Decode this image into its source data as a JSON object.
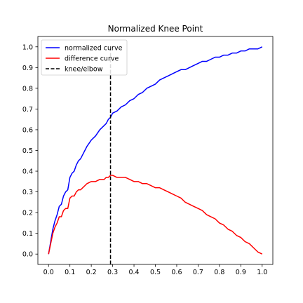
{
  "chart_data": {
    "type": "line",
    "title": "Normalized Knee Point",
    "xlabel": "",
    "ylabel": "",
    "xlim": [
      -0.05,
      1.05
    ],
    "ylim": [
      -0.05,
      1.05
    ],
    "xticks": [
      0.0,
      0.1,
      0.2,
      0.3,
      0.4,
      0.5,
      0.6,
      0.7,
      0.8,
      0.9,
      1.0
    ],
    "xtick_labels": [
      "0.0",
      "0.1",
      "0.2",
      "0.3",
      "0.4",
      "0.5",
      "0.6",
      "0.7",
      "0.8",
      "0.9",
      "1.0"
    ],
    "yticks": [
      0.0,
      0.1,
      0.2,
      0.3,
      0.4,
      0.5,
      0.6,
      0.7,
      0.8,
      0.9,
      1.0
    ],
    "ytick_labels": [
      "0.0",
      "0.1",
      "0.2",
      "0.3",
      "0.4",
      "0.5",
      "0.6",
      "0.7",
      "0.8",
      "0.9",
      "1.0"
    ],
    "grid": false,
    "legend_position": "top-left",
    "series": [
      {
        "name": "normalized curve",
        "color": "#0000ff",
        "x": [
          0.0,
          0.01,
          0.02,
          0.03,
          0.04,
          0.05,
          0.06,
          0.07,
          0.08,
          0.09,
          0.1,
          0.11,
          0.12,
          0.13,
          0.14,
          0.15,
          0.16,
          0.17,
          0.18,
          0.2,
          0.22,
          0.24,
          0.26,
          0.27,
          0.28,
          0.29,
          0.3,
          0.32,
          0.34,
          0.36,
          0.38,
          0.4,
          0.42,
          0.44,
          0.46,
          0.48,
          0.5,
          0.52,
          0.54,
          0.56,
          0.58,
          0.6,
          0.62,
          0.64,
          0.66,
          0.68,
          0.7,
          0.72,
          0.74,
          0.76,
          0.78,
          0.8,
          0.82,
          0.84,
          0.86,
          0.88,
          0.9,
          0.92,
          0.94,
          0.96,
          0.98,
          1.0
        ],
        "y": [
          0.0,
          0.06,
          0.12,
          0.16,
          0.19,
          0.23,
          0.24,
          0.28,
          0.3,
          0.31,
          0.37,
          0.39,
          0.4,
          0.43,
          0.45,
          0.46,
          0.48,
          0.5,
          0.52,
          0.55,
          0.57,
          0.6,
          0.62,
          0.63,
          0.65,
          0.66,
          0.68,
          0.69,
          0.71,
          0.72,
          0.74,
          0.75,
          0.77,
          0.78,
          0.8,
          0.81,
          0.82,
          0.84,
          0.85,
          0.86,
          0.87,
          0.88,
          0.89,
          0.89,
          0.9,
          0.91,
          0.92,
          0.93,
          0.93,
          0.94,
          0.95,
          0.95,
          0.96,
          0.96,
          0.97,
          0.97,
          0.98,
          0.98,
          0.99,
          0.99,
          0.99,
          1.0
        ]
      },
      {
        "name": "difference curve",
        "color": "#ff0000",
        "x": [
          0.0,
          0.01,
          0.02,
          0.03,
          0.04,
          0.05,
          0.06,
          0.07,
          0.08,
          0.09,
          0.1,
          0.11,
          0.12,
          0.13,
          0.14,
          0.15,
          0.16,
          0.17,
          0.18,
          0.2,
          0.22,
          0.24,
          0.26,
          0.27,
          0.28,
          0.29,
          0.3,
          0.32,
          0.34,
          0.36,
          0.38,
          0.4,
          0.42,
          0.44,
          0.46,
          0.48,
          0.5,
          0.52,
          0.54,
          0.56,
          0.58,
          0.6,
          0.62,
          0.64,
          0.66,
          0.68,
          0.7,
          0.72,
          0.74,
          0.76,
          0.78,
          0.8,
          0.82,
          0.84,
          0.86,
          0.88,
          0.9,
          0.92,
          0.94,
          0.96,
          0.98,
          1.0
        ],
        "y": [
          0.0,
          0.05,
          0.1,
          0.13,
          0.15,
          0.18,
          0.18,
          0.21,
          0.22,
          0.22,
          0.27,
          0.28,
          0.28,
          0.3,
          0.31,
          0.31,
          0.32,
          0.33,
          0.34,
          0.35,
          0.35,
          0.36,
          0.36,
          0.37,
          0.37,
          0.38,
          0.38,
          0.37,
          0.37,
          0.37,
          0.36,
          0.35,
          0.35,
          0.34,
          0.34,
          0.33,
          0.32,
          0.32,
          0.31,
          0.3,
          0.29,
          0.28,
          0.27,
          0.25,
          0.24,
          0.23,
          0.22,
          0.21,
          0.19,
          0.18,
          0.17,
          0.15,
          0.14,
          0.12,
          0.11,
          0.09,
          0.08,
          0.06,
          0.05,
          0.03,
          0.01,
          0.0
        ]
      }
    ],
    "vlines": [
      {
        "name": "knee/elbow",
        "x": 0.29,
        "ymin": -0.05,
        "ymax": 1.0,
        "color": "#000000",
        "style": "dashed"
      }
    ],
    "legend": [
      {
        "label": "normalized curve",
        "color": "#0000ff",
        "style": "solid"
      },
      {
        "label": "difference curve",
        "color": "#ff0000",
        "style": "solid"
      },
      {
        "label": "knee/elbow",
        "color": "#000000",
        "style": "dashed"
      }
    ]
  }
}
